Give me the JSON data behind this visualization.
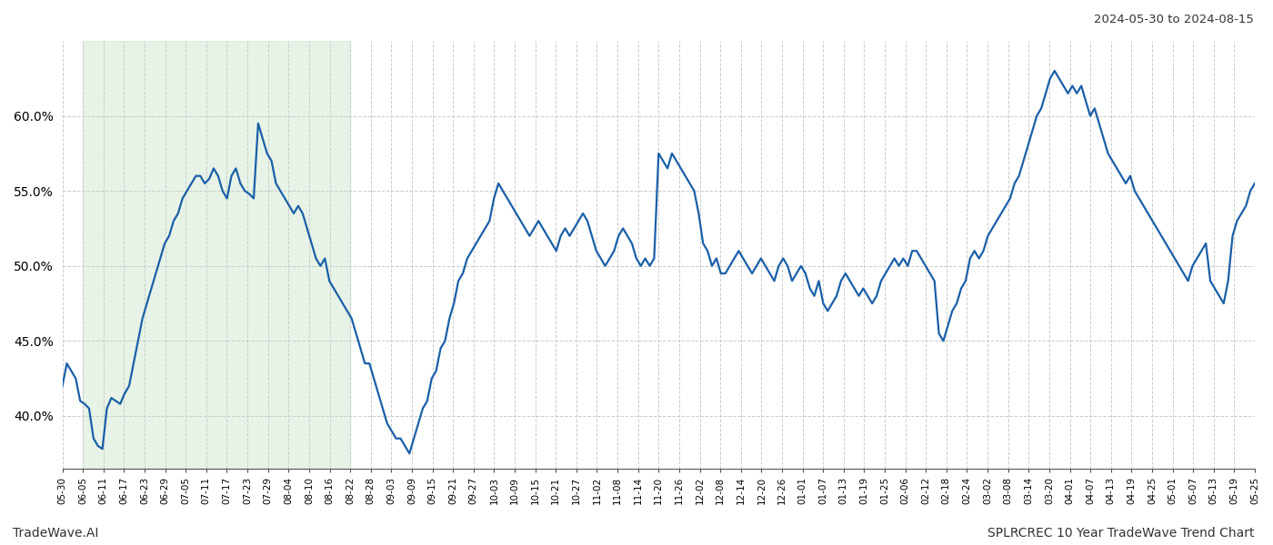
{
  "title_date_range": "2024-05-30 to 2024-08-15",
  "footer_left": "TradeWave.AI",
  "footer_right": "SPLRCREC 10 Year TradeWave Trend Chart",
  "line_color": "#1a5fa8",
  "line_width": 1.6,
  "shading_color": "#c8e6c9",
  "shading_alpha": 0.45,
  "background_color": "#ffffff",
  "grid_color": "#cccccc",
  "grid_style": "--",
  "ylim": [
    36.5,
    65.0
  ],
  "yticks": [
    40.0,
    45.0,
    50.0,
    55.0,
    60.0
  ],
  "ytick_labels": [
    "40.0%",
    "45.0%",
    "50.0%",
    "55.0%",
    "60.0%"
  ],
  "xtick_labels": [
    "05-30",
    "06-05",
    "06-11",
    "06-17",
    "06-23",
    "06-29",
    "07-05",
    "07-11",
    "07-17",
    "07-23",
    "07-29",
    "08-04",
    "08-10",
    "08-16",
    "08-22",
    "08-28",
    "09-03",
    "09-09",
    "09-15",
    "09-21",
    "09-27",
    "10-03",
    "10-09",
    "10-15",
    "10-21",
    "10-27",
    "11-02",
    "11-08",
    "11-14",
    "11-20",
    "11-26",
    "12-02",
    "12-08",
    "12-14",
    "12-20",
    "12-26",
    "01-01",
    "01-07",
    "01-13",
    "01-19",
    "01-25",
    "02-06",
    "02-12",
    "02-18",
    "02-24",
    "03-02",
    "03-08",
    "03-14",
    "03-20",
    "04-01",
    "04-07",
    "04-13",
    "04-19",
    "04-25",
    "05-01",
    "05-07",
    "05-13",
    "05-19",
    "05-25"
  ],
  "shade_start_label": "06-05",
  "shade_end_label": "08-22",
  "values": [
    42.0,
    43.5,
    43.0,
    42.5,
    41.0,
    40.8,
    40.5,
    38.5,
    38.0,
    37.8,
    40.5,
    41.2,
    41.0,
    40.8,
    41.5,
    42.0,
    43.5,
    45.0,
    46.5,
    47.5,
    48.5,
    49.5,
    50.5,
    51.5,
    52.0,
    53.0,
    53.5,
    54.5,
    55.0,
    55.5,
    56.0,
    56.0,
    55.5,
    55.8,
    56.5,
    56.0,
    55.0,
    54.5,
    56.0,
    56.5,
    55.5,
    55.0,
    54.8,
    54.5,
    59.5,
    58.5,
    57.5,
    57.0,
    55.5,
    55.0,
    54.5,
    54.0,
    53.5,
    54.0,
    53.5,
    52.5,
    51.5,
    50.5,
    50.0,
    50.5,
    49.0,
    48.5,
    48.0,
    47.5,
    47.0,
    46.5,
    45.5,
    44.5,
    43.5,
    43.5,
    42.5,
    41.5,
    40.5,
    39.5,
    39.0,
    38.5,
    38.5,
    38.0,
    37.5,
    38.5,
    39.5,
    40.5,
    41.0,
    42.5,
    43.0,
    44.5,
    45.0,
    46.5,
    47.5,
    49.0,
    49.5,
    50.5,
    51.0,
    51.5,
    52.0,
    52.5,
    53.0,
    54.5,
    55.5,
    55.0,
    54.5,
    54.0,
    53.5,
    53.0,
    52.5,
    52.0,
    52.5,
    53.0,
    52.5,
    52.0,
    51.5,
    51.0,
    52.0,
    52.5,
    52.0,
    52.5,
    53.0,
    53.5,
    53.0,
    52.0,
    51.0,
    50.5,
    50.0,
    50.5,
    51.0,
    52.0,
    52.5,
    52.0,
    51.5,
    50.5,
    50.0,
    50.5,
    50.0,
    50.5,
    57.5,
    57.0,
    56.5,
    57.5,
    57.0,
    56.5,
    56.0,
    55.5,
    55.0,
    53.5,
    51.5,
    51.0,
    50.0,
    50.5,
    49.5,
    49.5,
    50.0,
    50.5,
    51.0,
    50.5,
    50.0,
    49.5,
    50.0,
    50.5,
    50.0,
    49.5,
    49.0,
    50.0,
    50.5,
    50.0,
    49.0,
    49.5,
    50.0,
    49.5,
    48.5,
    48.0,
    49.0,
    47.5,
    47.0,
    47.5,
    48.0,
    49.0,
    49.5,
    49.0,
    48.5,
    48.0,
    48.5,
    48.0,
    47.5,
    48.0,
    49.0,
    49.5,
    50.0,
    50.5,
    50.0,
    50.5,
    50.0,
    51.0,
    51.0,
    50.5,
    50.0,
    49.5,
    49.0,
    45.5,
    45.0,
    46.0,
    47.0,
    47.5,
    48.5,
    49.0,
    50.5,
    51.0,
    50.5,
    51.0,
    52.0,
    52.5,
    53.0,
    53.5,
    54.0,
    54.5,
    55.5,
    56.0,
    57.0,
    58.0,
    59.0,
    60.0,
    60.5,
    61.5,
    62.5,
    63.0,
    62.5,
    62.0,
    61.5,
    62.0,
    61.5,
    62.0,
    61.0,
    60.0,
    60.5,
    59.5,
    58.5,
    57.5,
    57.0,
    56.5,
    56.0,
    55.5,
    56.0,
    55.0,
    54.5,
    54.0,
    53.5,
    53.0,
    52.5,
    52.0,
    51.5,
    51.0,
    50.5,
    50.0,
    49.5,
    49.0,
    50.0,
    50.5,
    51.0,
    51.5,
    49.0,
    48.5,
    48.0,
    47.5,
    49.0,
    52.0,
    53.0,
    53.5,
    54.0,
    55.0,
    55.5
  ]
}
